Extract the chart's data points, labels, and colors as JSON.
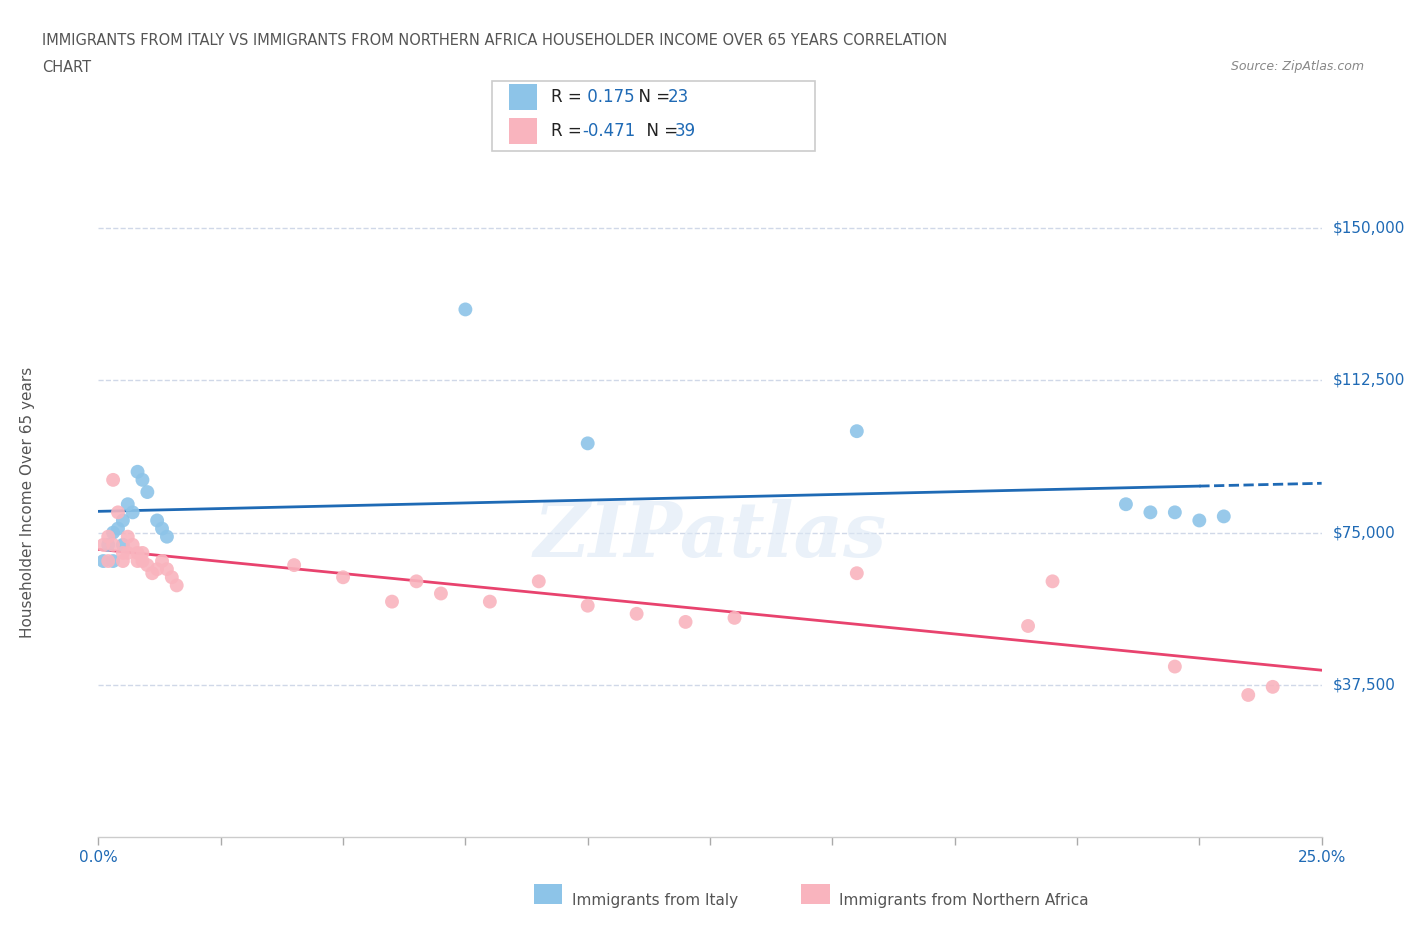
{
  "title_line1": "IMMIGRANTS FROM ITALY VS IMMIGRANTS FROM NORTHERN AFRICA HOUSEHOLDER INCOME OVER 65 YEARS CORRELATION",
  "title_line2": "CHART",
  "source": "Source: ZipAtlas.com",
  "watermark": "ZIPatlas",
  "italy_x": [
    0.001,
    0.002,
    0.003,
    0.003,
    0.004,
    0.005,
    0.005,
    0.006,
    0.007,
    0.008,
    0.009,
    0.01,
    0.012,
    0.013,
    0.014,
    0.075,
    0.1,
    0.155,
    0.21,
    0.215,
    0.22,
    0.225,
    0.23
  ],
  "italy_y": [
    68000,
    72000,
    75000,
    68000,
    76000,
    78000,
    72000,
    82000,
    80000,
    90000,
    88000,
    85000,
    78000,
    76000,
    74000,
    130000,
    97000,
    100000,
    82000,
    80000,
    80000,
    78000,
    79000
  ],
  "africa_x": [
    0.001,
    0.002,
    0.002,
    0.003,
    0.003,
    0.004,
    0.005,
    0.005,
    0.006,
    0.006,
    0.007,
    0.008,
    0.008,
    0.009,
    0.009,
    0.01,
    0.011,
    0.012,
    0.013,
    0.014,
    0.015,
    0.016,
    0.04,
    0.05,
    0.06,
    0.065,
    0.07,
    0.08,
    0.09,
    0.1,
    0.11,
    0.12,
    0.13,
    0.155,
    0.19,
    0.195,
    0.22,
    0.235,
    0.24
  ],
  "africa_y": [
    72000,
    74000,
    68000,
    72000,
    88000,
    80000,
    70000,
    68000,
    70000,
    74000,
    72000,
    68000,
    70000,
    70000,
    68000,
    67000,
    65000,
    66000,
    68000,
    66000,
    64000,
    62000,
    67000,
    64000,
    58000,
    63000,
    60000,
    58000,
    63000,
    57000,
    55000,
    53000,
    54000,
    65000,
    52000,
    63000,
    42000,
    35000,
    37000
  ],
  "italy_R": 0.175,
  "italy_N": 23,
  "africa_R": -0.471,
  "africa_N": 39,
  "italy_color": "#8dc4e8",
  "africa_color": "#f9b4be",
  "italy_line_color": "#1f6ab5",
  "africa_line_color": "#e8436e",
  "label_color": "#1f6ab5",
  "xlim": [
    0.0,
    0.25
  ],
  "ylim": [
    0,
    165000
  ],
  "yticks": [
    37500,
    75000,
    112500,
    150000
  ],
  "ytick_labels": [
    "$37,500",
    "$75,000",
    "$112,500",
    "$150,000"
  ],
  "xticks": [
    0.0,
    0.025,
    0.05,
    0.075,
    0.1,
    0.125,
    0.15,
    0.175,
    0.2,
    0.225,
    0.25
  ],
  "xtick_show": [
    0.0,
    0.25
  ],
  "xtick_label_0": "0.0%",
  "xtick_label_25": "25.0%",
  "hlines": [
    37500,
    75000,
    112500,
    150000
  ],
  "xlabel_italy": "Immigrants from Italy",
  "xlabel_africa": "Immigrants from Northern Africa",
  "ylabel": "Householder Income Over 65 years",
  "background_color": "#ffffff",
  "plot_bg_color": "#ffffff",
  "grid_color": "#d0d8e8"
}
